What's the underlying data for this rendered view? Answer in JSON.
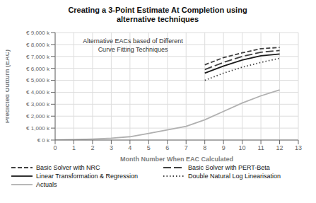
{
  "chart_data": {
    "type": "line",
    "title": "Creating a 3-Point Estimate At Completion using\nalternative techniques",
    "annotation": "Alternative EACs based of Different\nCurve Fitting Techniques",
    "xlabel": "Month Number When EAC Calculated",
    "ylabel": "Predicted Outturn (EAC)",
    "xlim": [
      0,
      13
    ],
    "ylim": [
      0,
      9000
    ],
    "xticks": [
      0,
      1,
      2,
      3,
      4,
      5,
      6,
      7,
      8,
      9,
      10,
      11,
      12,
      13
    ],
    "yticks": [
      {
        "value": 0,
        "label": "€ 0 k"
      },
      {
        "value": 1000,
        "label": "€ 1,000 k"
      },
      {
        "value": 2000,
        "label": "€ 2,000 k"
      },
      {
        "value": 3000,
        "label": "€ 3,000 k"
      },
      {
        "value": 4000,
        "label": "€ 4,000 k"
      },
      {
        "value": 5000,
        "label": "€ 5,000 k"
      },
      {
        "value": 6000,
        "label": "€ 6,000 k"
      },
      {
        "value": 7000,
        "label": "€ 7,000 k"
      },
      {
        "value": 8000,
        "label": "€ 8,000 k"
      },
      {
        "value": 9000,
        "label": "€ 9,000 k"
      }
    ],
    "grid": true,
    "series": [
      {
        "name": "Basic Solver with NRC",
        "color": "#404040",
        "line_style": "dashed",
        "x": [
          8,
          9,
          10,
          11,
          12
        ],
        "values": [
          6300,
          6900,
          7300,
          7650,
          7750
        ]
      },
      {
        "name": "Basic Solver with PERT-Beta",
        "color": "#404040",
        "line_style": "longdash",
        "x": [
          8,
          9,
          10,
          11,
          12
        ],
        "values": [
          5900,
          6500,
          7000,
          7350,
          7500
        ]
      },
      {
        "name": "Linear Transformation & Regression",
        "color": "#1a1a1a",
        "line_style": "solid",
        "x": [
          8,
          9,
          10,
          11,
          12
        ],
        "values": [
          5600,
          6200,
          6700,
          7050,
          7200
        ]
      },
      {
        "name": "Double Natural Log Linearisation",
        "color": "#404040",
        "line_style": "dotted",
        "x": [
          8,
          9,
          10,
          11,
          12
        ],
        "values": [
          5000,
          5600,
          6100,
          6500,
          6850
        ]
      },
      {
        "name": "Actuals",
        "color": "#b0b0b0",
        "line_style": "solid",
        "x": [
          0,
          1,
          2,
          3,
          4,
          5,
          6,
          7,
          8,
          9,
          10,
          11,
          12
        ],
        "values": [
          0,
          30,
          80,
          160,
          280,
          550,
          850,
          1150,
          1700,
          2400,
          3100,
          3700,
          4200
        ]
      }
    ]
  }
}
